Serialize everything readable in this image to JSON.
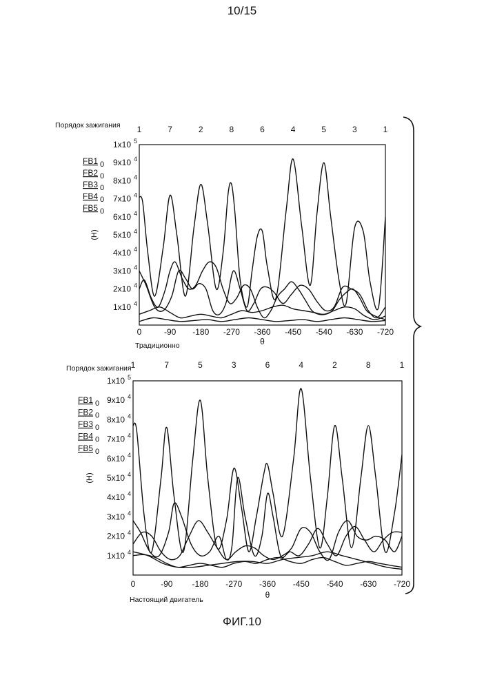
{
  "page_number": "10/15",
  "figure_caption": "ФИГ.10",
  "chart_data": [
    {
      "id": "top",
      "type": "line",
      "firing_order_label": "Порядок зажигания",
      "firing_order": [
        "1",
        "7",
        "2",
        "8",
        "6",
        "4",
        "5",
        "3",
        "1"
      ],
      "legend": [
        {
          "name": "FB1",
          "suffix": "0"
        },
        {
          "name": "FB2",
          "suffix": "0"
        },
        {
          "name": "FB3",
          "suffix": "0"
        },
        {
          "name": "FB4",
          "suffix": "0"
        },
        {
          "name": "FB5",
          "suffix": "0"
        }
      ],
      "ylabel": "(H)",
      "xlabel": "θ",
      "subtitle": "Традиционно",
      "x_ticks": [
        "0",
        "-90",
        "-180",
        "-270",
        "-360",
        "-450",
        "-540",
        "-630",
        "-720"
      ],
      "y_ticks": [
        {
          "value": 10000,
          "mant": "1x10",
          "exp": "4"
        },
        {
          "value": 20000,
          "mant": "2x10",
          "exp": "4"
        },
        {
          "value": 30000,
          "mant": "3x10",
          "exp": "4"
        },
        {
          "value": 40000,
          "mant": "4x10",
          "exp": "4"
        },
        {
          "value": 50000,
          "mant": "5x10",
          "exp": "4"
        },
        {
          "value": 60000,
          "mant": "6x10",
          "exp": "4"
        },
        {
          "value": 70000,
          "mant": "7x10",
          "exp": "4"
        },
        {
          "value": 80000,
          "mant": "8x10",
          "exp": "4"
        },
        {
          "value": 90000,
          "mant": "9x10",
          "exp": "4"
        },
        {
          "value": 100000,
          "mant": "1x10",
          "exp": "5"
        }
      ],
      "xlim": [
        0,
        -720
      ],
      "ylim": [
        0,
        100000
      ],
      "series": [
        {
          "x": [
            0,
            -10,
            -25,
            -45,
            -70,
            -90,
            -110,
            -135,
            -160,
            -180,
            -200,
            -225,
            -245,
            -260,
            -270,
            -280,
            -295,
            -315,
            -330,
            -345,
            -360,
            -375,
            -400,
            -430,
            -450,
            -475,
            -500,
            -520,
            -540,
            -560,
            -585,
            -605,
            -630,
            -655,
            -675,
            -700,
            -720
          ],
          "y": [
            71000,
            68000,
            40000,
            16000,
            43000,
            72000,
            50000,
            16000,
            54000,
            78000,
            56000,
            20000,
            40000,
            73000,
            78000,
            62000,
            25000,
            10000,
            30000,
            49000,
            52000,
            32000,
            15000,
            64000,
            92000,
            55000,
            22000,
            62000,
            90000,
            60000,
            24000,
            12000,
            54000,
            52000,
            24000,
            10000,
            60000
          ]
        },
        {
          "x": [
            0,
            -15,
            -35,
            -55,
            -75,
            -90,
            -105,
            -125,
            -145,
            -165,
            -185,
            -205,
            -225,
            -245,
            -265,
            -285,
            -305,
            -325,
            -345,
            -365,
            -385,
            -405,
            -425,
            -445,
            -465,
            -485,
            -505,
            -525,
            -545,
            -565,
            -585,
            -605,
            -625,
            -645,
            -665,
            -690,
            -720
          ],
          "y": [
            20000,
            25000,
            15000,
            10000,
            19000,
            30000,
            35000,
            26000,
            20000,
            22000,
            30000,
            35000,
            32000,
            20000,
            12000,
            15000,
            22000,
            20000,
            10000,
            4000,
            8000,
            16000,
            20000,
            24000,
            20000,
            14000,
            8000,
            6000,
            6000,
            8000,
            14000,
            18000,
            20000,
            15000,
            8000,
            5000,
            3000
          ]
        },
        {
          "x": [
            0,
            -20,
            -45,
            -70,
            -95,
            -115,
            -135,
            -155,
            -175,
            -195,
            -215,
            -235,
            -255,
            -275,
            -295,
            -315,
            -335,
            -355,
            -375,
            -395,
            -420,
            -445,
            -470,
            -495,
            -520,
            -545,
            -570,
            -595,
            -620,
            -645,
            -670,
            -695,
            -720
          ],
          "y": [
            30000,
            22000,
            10000,
            8000,
            16000,
            30000,
            26000,
            20000,
            23000,
            20000,
            8000,
            6000,
            13000,
            30000,
            20000,
            8000,
            12000,
            20000,
            21000,
            18000,
            12000,
            17000,
            22000,
            20000,
            13000,
            8000,
            10000,
            21000,
            20000,
            17000,
            8000,
            4000,
            10000
          ]
        },
        {
          "x": [
            0,
            -30,
            -60,
            -90,
            -120,
            -150,
            -180,
            -210,
            -240,
            -270,
            -300,
            -330,
            -360,
            -390,
            -420,
            -450,
            -480,
            -510,
            -540,
            -570,
            -600,
            -630,
            -660,
            -690,
            -720
          ],
          "y": [
            6000,
            8000,
            10000,
            7000,
            4000,
            5000,
            6000,
            5000,
            4000,
            6000,
            8000,
            7000,
            8000,
            10000,
            11000,
            9000,
            8000,
            7000,
            6000,
            8000,
            10000,
            9000,
            5000,
            3000,
            5000
          ]
        },
        {
          "x": [
            0,
            -40,
            -80,
            -120,
            -160,
            -200,
            -240,
            -280,
            -320,
            -360,
            -400,
            -440,
            -480,
            -520,
            -560,
            -600,
            -640,
            -680,
            -720
          ],
          "y": [
            2000,
            4000,
            3000,
            2000,
            2500,
            3000,
            2000,
            3000,
            4000,
            3000,
            2000,
            2500,
            3000,
            2000,
            3000,
            4000,
            3000,
            2000,
            2500
          ]
        }
      ]
    },
    {
      "id": "bottom",
      "type": "line",
      "firing_order_label": "Порядок зажигания",
      "firing_order": [
        "1",
        "7",
        "5",
        "3",
        "6",
        "4",
        "2",
        "8",
        "1"
      ],
      "legend": [
        {
          "name": "FB1",
          "suffix": "0"
        },
        {
          "name": "FB2",
          "suffix": "0"
        },
        {
          "name": "FB3",
          "suffix": "0"
        },
        {
          "name": "FB4",
          "suffix": "0"
        },
        {
          "name": "FB5",
          "suffix": "0"
        }
      ],
      "ylabel": "(H)",
      "xlabel": "θ",
      "subtitle": "Настоящий двигатель",
      "x_ticks": [
        "0",
        "-90",
        "-180",
        "-270",
        "-360",
        "-450",
        "-540",
        "-630",
        "-720"
      ],
      "y_ticks": [
        {
          "value": 10000,
          "mant": "1x10",
          "exp": "4"
        },
        {
          "value": 20000,
          "mant": "2x10",
          "exp": "4"
        },
        {
          "value": 30000,
          "mant": "3x10",
          "exp": "4"
        },
        {
          "value": 40000,
          "mant": "4x10",
          "exp": "4"
        },
        {
          "value": 50000,
          "mant": "5x10",
          "exp": "4"
        },
        {
          "value": 60000,
          "mant": "6x10",
          "exp": "4"
        },
        {
          "value": 70000,
          "mant": "7x10",
          "exp": "4"
        },
        {
          "value": 80000,
          "mant": "8x10",
          "exp": "4"
        },
        {
          "value": 90000,
          "mant": "9x10",
          "exp": "4"
        },
        {
          "value": 100000,
          "mant": "1x10",
          "exp": "5"
        }
      ],
      "xlim": [
        0,
        -720
      ],
      "ylim": [
        0,
        100000
      ],
      "series": [
        {
          "x": [
            0,
            -10,
            -30,
            -50,
            -75,
            -90,
            -110,
            -135,
            -160,
            -180,
            -200,
            -225,
            -250,
            -270,
            -290,
            -310,
            -330,
            -350,
            -360,
            -375,
            -400,
            -430,
            -450,
            -475,
            -500,
            -520,
            -540,
            -560,
            -585,
            -610,
            -630,
            -650,
            -675,
            -700,
            -720
          ],
          "y": [
            77000,
            74000,
            30000,
            12000,
            50000,
            76000,
            40000,
            12000,
            60000,
            90000,
            50000,
            14000,
            28000,
            55000,
            35000,
            12000,
            30000,
            52000,
            57000,
            42000,
            20000,
            60000,
            96000,
            50000,
            14000,
            40000,
            77000,
            50000,
            14000,
            50000,
            77000,
            50000,
            12000,
            32000,
            62000
          ]
        },
        {
          "x": [
            0,
            -20,
            -45,
            -70,
            -95,
            -110,
            -130,
            -155,
            -180,
            -205,
            -230,
            -250,
            -265,
            -280,
            -300,
            -325,
            -345,
            -360,
            -375,
            -395,
            -420,
            -445,
            -470,
            -495,
            -520,
            -545,
            -570,
            -595,
            -620,
            -645,
            -670,
            -695,
            -720
          ],
          "y": [
            28000,
            22000,
            12000,
            10000,
            22000,
            37000,
            30000,
            16000,
            10000,
            12000,
            20000,
            8000,
            15000,
            50000,
            30000,
            10000,
            20000,
            42000,
            30000,
            10000,
            12000,
            10000,
            16000,
            24000,
            16000,
            10000,
            20000,
            25000,
            18000,
            12000,
            18000,
            22000,
            22000
          ]
        },
        {
          "x": [
            0,
            -25,
            -50,
            -75,
            -100,
            -125,
            -150,
            -175,
            -200,
            -225,
            -250,
            -275,
            -300,
            -325,
            -350,
            -375,
            -400,
            -425,
            -450,
            -475,
            -500,
            -525,
            -550,
            -575,
            -600,
            -625,
            -650,
            -675,
            -700,
            -720
          ],
          "y": [
            16000,
            22000,
            20000,
            12000,
            8000,
            10000,
            20000,
            28000,
            22000,
            14000,
            8000,
            12000,
            15000,
            14000,
            10000,
            8000,
            10000,
            14000,
            24000,
            22000,
            12000,
            8000,
            22000,
            28000,
            20000,
            18000,
            20000,
            18000,
            12000,
            20000
          ]
        },
        {
          "x": [
            0,
            -30,
            -60,
            -90,
            -120,
            -150,
            -180,
            -210,
            -240,
            -270,
            -300,
            -330,
            -360,
            -390,
            -420,
            -450,
            -480,
            -510,
            -540,
            -570,
            -600,
            -630,
            -660,
            -690,
            -720
          ],
          "y": [
            10000,
            10500,
            9000,
            6000,
            4000,
            5000,
            6000,
            5000,
            4000,
            6000,
            7000,
            6000,
            8000,
            9000,
            7000,
            6000,
            8000,
            9000,
            7000,
            5000,
            6000,
            7000,
            6000,
            5000,
            4000
          ]
        },
        {
          "x": [
            0,
            -40,
            -80,
            -120,
            -160,
            -200,
            -240,
            -280,
            -320,
            -360,
            -400,
            -440,
            -480,
            -520,
            -560,
            -600,
            -640,
            -680,
            -720
          ],
          "y": [
            12000,
            10000,
            6000,
            4000,
            4000,
            5000,
            6000,
            7000,
            7000,
            6000,
            8000,
            9000,
            10000,
            12000,
            10000,
            8000,
            6000,
            4000,
            3000
          ]
        }
      ]
    }
  ]
}
